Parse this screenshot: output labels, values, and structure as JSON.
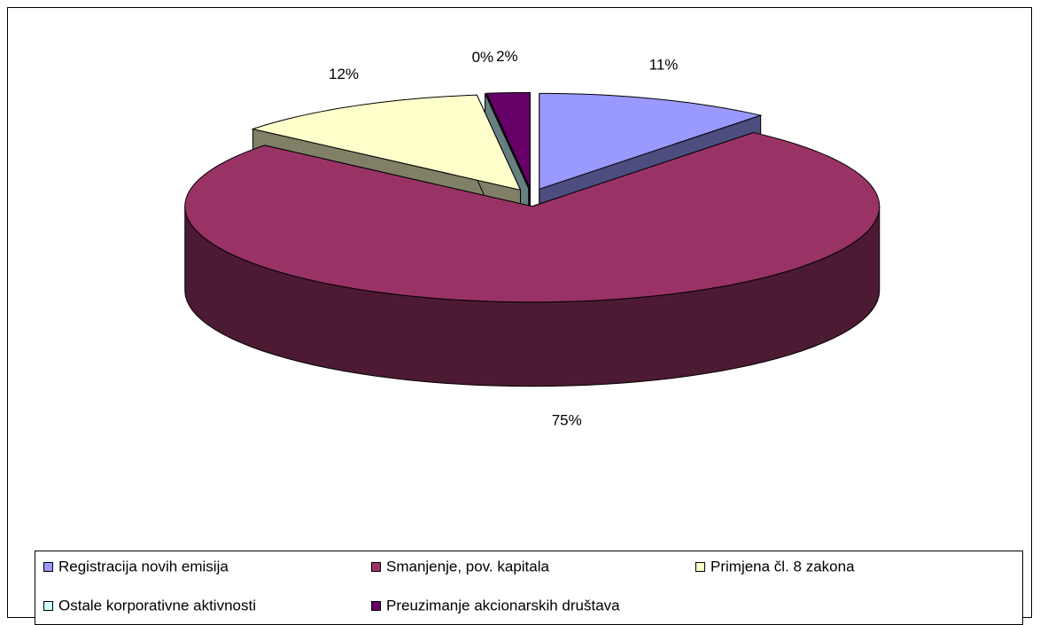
{
  "chart_data": {
    "type": "pie",
    "categories": [
      "Registracija novih emisija",
      "Smanjenje, pov. kapitala",
      "Primjena čl. 8 zakona",
      "Ostale korporativne aktivnosti",
      "Preuzimanje akcionarskih društava"
    ],
    "values": [
      11,
      75,
      12,
      0,
      2
    ],
    "value_labels": [
      "11%",
      "75%",
      "12%",
      "0%",
      "2%"
    ],
    "colors": [
      "#9999ff",
      "#993366",
      "#ffffcc",
      "#ccffff",
      "#660066"
    ],
    "legend": "bottom"
  }
}
